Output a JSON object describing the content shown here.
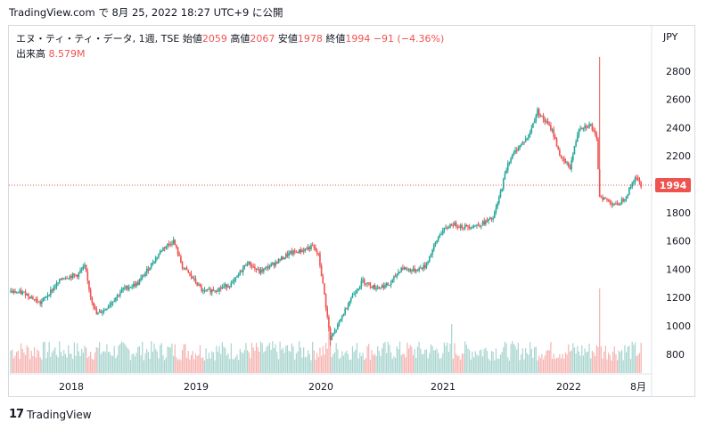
{
  "header": {
    "source": "TradingView.com",
    "timestamp_text": "で 8月 25, 2022 18:27 UTC+9 に公開"
  },
  "legend": {
    "symbol": "エヌ・ティ・ティ・データ, 1週, TSE",
    "open_label": "始値",
    "open": "2059",
    "high_label": "高値",
    "high": "2067",
    "low_label": "安値",
    "low": "1978",
    "close_label": "終値",
    "close": "1994",
    "change": "−91 (−4.36%)",
    "volume_label": "出来高",
    "volume": "8.579M"
  },
  "currency": "JPY",
  "footer": {
    "brand": "TradingView",
    "logo_glyph": "17"
  },
  "colors": {
    "up": "#26a69a",
    "down": "#ef5350",
    "vol_up": "#a8d5cf",
    "vol_down": "#f5b3b1",
    "price_line": "#ef5350"
  },
  "chart_data": {
    "type": "candlestick",
    "y_ticks": [
      800,
      1000,
      1200,
      1400,
      1600,
      1800,
      2000,
      2200,
      2400,
      2600,
      2800
    ],
    "y_tick_labels": [
      "800",
      "1000",
      "1200",
      "1400",
      "1600",
      "1800",
      "",
      "2200",
      "2400",
      "2600",
      "2800"
    ],
    "x_tick_labels": [
      "2018",
      "2019",
      "2020",
      "2021",
      "2022",
      "8月"
    ],
    "last_price": 1994,
    "last_price_label": "1994",
    "weekly_close_path": [
      {
        "x": 0,
        "y": 1240
      },
      {
        "x": 10,
        "y": 1230
      },
      {
        "x": 20,
        "y": 1160
      },
      {
        "x": 35,
        "y": 1340
      },
      {
        "x": 45,
        "y": 1360
      },
      {
        "x": 50,
        "y": 1420
      },
      {
        "x": 54,
        "y": 1210
      },
      {
        "x": 58,
        "y": 1080
      },
      {
        "x": 64,
        "y": 1120
      },
      {
        "x": 76,
        "y": 1260
      },
      {
        "x": 86,
        "y": 1300
      },
      {
        "x": 96,
        "y": 1450
      },
      {
        "x": 103,
        "y": 1550
      },
      {
        "x": 110,
        "y": 1600
      },
      {
        "x": 116,
        "y": 1420
      },
      {
        "x": 122,
        "y": 1350
      },
      {
        "x": 130,
        "y": 1240
      },
      {
        "x": 140,
        "y": 1260
      },
      {
        "x": 150,
        "y": 1300
      },
      {
        "x": 160,
        "y": 1450
      },
      {
        "x": 168,
        "y": 1380
      },
      {
        "x": 178,
        "y": 1440
      },
      {
        "x": 188,
        "y": 1510
      },
      {
        "x": 196,
        "y": 1530
      },
      {
        "x": 204,
        "y": 1560
      },
      {
        "x": 208,
        "y": 1500
      },
      {
        "x": 212,
        "y": 1220
      },
      {
        "x": 216,
        "y": 900
      },
      {
        "x": 220,
        "y": 980
      },
      {
        "x": 230,
        "y": 1200
      },
      {
        "x": 238,
        "y": 1320
      },
      {
        "x": 246,
        "y": 1270
      },
      {
        "x": 256,
        "y": 1290
      },
      {
        "x": 264,
        "y": 1410
      },
      {
        "x": 272,
        "y": 1390
      },
      {
        "x": 280,
        "y": 1420
      },
      {
        "x": 290,
        "y": 1650
      },
      {
        "x": 298,
        "y": 1720
      },
      {
        "x": 306,
        "y": 1700
      },
      {
        "x": 316,
        "y": 1710
      },
      {
        "x": 326,
        "y": 1760
      },
      {
        "x": 330,
        "y": 1900
      },
      {
        "x": 336,
        "y": 2150
      },
      {
        "x": 342,
        "y": 2250
      },
      {
        "x": 350,
        "y": 2340
      },
      {
        "x": 356,
        "y": 2520
      },
      {
        "x": 360,
        "y": 2460
      },
      {
        "x": 366,
        "y": 2380
      },
      {
        "x": 372,
        "y": 2180
      },
      {
        "x": 378,
        "y": 2120
      },
      {
        "x": 384,
        "y": 2400
      },
      {
        "x": 392,
        "y": 2420
      },
      {
        "x": 396,
        "y": 2310
      },
      {
        "x": 398,
        "y": 1920
      },
      {
        "x": 404,
        "y": 1880
      },
      {
        "x": 410,
        "y": 1850
      },
      {
        "x": 416,
        "y": 1920
      },
      {
        "x": 422,
        "y": 2050
      },
      {
        "x": 426,
        "y": 1994
      }
    ]
  }
}
